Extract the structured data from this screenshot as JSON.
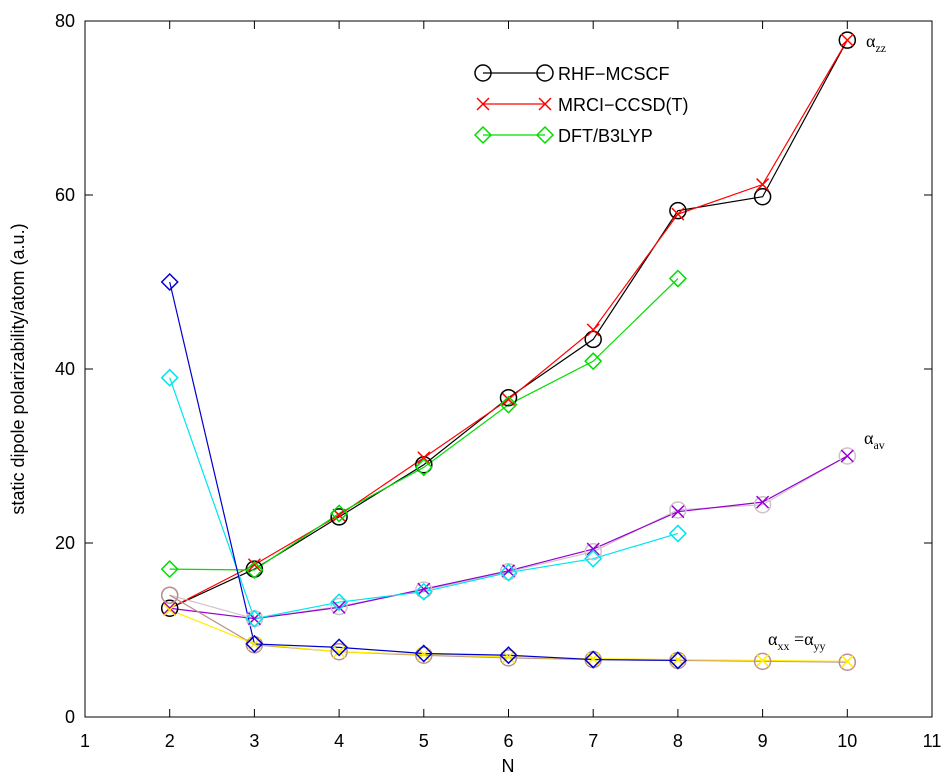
{
  "chart_data": {
    "type": "line",
    "xlabel": "N",
    "ylabel": "static dipole polarizability/atom (a.u.)",
    "x": [
      2,
      3,
      4,
      5,
      6,
      7,
      8,
      9,
      10
    ],
    "xlim": [
      1,
      11
    ],
    "xticks": [
      1,
      2,
      3,
      4,
      5,
      6,
      7,
      8,
      9,
      10,
      11
    ],
    "ylim": [
      0,
      80
    ],
    "yticks": [
      0,
      20,
      40,
      60,
      80
    ],
    "grid": false,
    "legend": "top",
    "series": [
      {
        "name": "RHF−MCSCF",
        "color": "#000000",
        "marker": "circle",
        "values": [
          12.5,
          17,
          23,
          29,
          36.7,
          43.4,
          58.2,
          59.8,
          77.8
        ]
      },
      {
        "name": "MRCI−CCSD(T)",
        "color": "#ff0000",
        "marker": "x",
        "values": [
          12.5,
          17.5,
          23.2,
          29.8,
          36.5,
          44.5,
          57.8,
          61.2,
          77.8
        ]
      },
      {
        "name": "DFT/B3LYP",
        "color": "#00dd00",
        "marker": "diamond",
        "values": [
          17,
          16.9,
          23.4,
          28.7,
          35.9,
          40.9,
          50.4,
          null,
          null
        ]
      },
      {
        "color": "#d0c0c8",
        "marker": "circle",
        "values": [
          14,
          11.3,
          12.7,
          14.6,
          16.7,
          19,
          23.8,
          24.4,
          30
        ]
      },
      {
        "color": "#9400d3",
        "marker": "x",
        "values": [
          12.5,
          11.3,
          12.6,
          14.7,
          16.8,
          19.3,
          23.6,
          24.7,
          30
        ]
      },
      {
        "color": "#00e5ee",
        "marker": "diamond",
        "values": [
          39,
          11.3,
          13.2,
          14.4,
          16.6,
          18.2,
          21.1,
          null,
          null
        ]
      },
      {
        "color": "#bc8f8f",
        "marker": "circle",
        "values": [
          14,
          8.3,
          7.5,
          7.1,
          6.8,
          6.6,
          6.5,
          6.4,
          6.3
        ]
      },
      {
        "color": "#ffee00",
        "marker": "x",
        "values": [
          12.3,
          8.4,
          7.5,
          7.2,
          6.9,
          6.7,
          6.6,
          6.5,
          6.4
        ]
      },
      {
        "color": "#0000cd",
        "marker": "diamond",
        "values": [
          50,
          8.4,
          8,
          7.3,
          7.1,
          6.6,
          6.5,
          null,
          null
        ]
      }
    ],
    "annotations": [
      [
        {
          "text": "α",
          "sub": "zz"
        }
      ],
      [
        {
          "text": "α",
          "sub": "av"
        }
      ],
      [
        {
          "text": "α",
          "sub": "xx"
        },
        {
          "text": " =α",
          "sub": "yy"
        }
      ]
    ]
  }
}
